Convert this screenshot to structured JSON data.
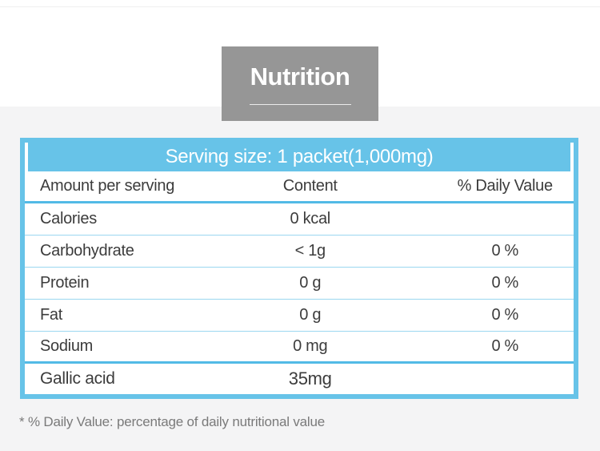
{
  "page": {
    "section_title": "Nutrition",
    "footnote": "* % Daily Value: percentage of daily nutritional value"
  },
  "colors": {
    "accent_blue": "#67C3E8",
    "divider_strong": "#52BAE6",
    "divider_light": "#9BD7F0",
    "title_box_gray": "#969696",
    "section_background": "#F4F4F5",
    "text_dark": "#3C3C3C",
    "text_muted": "#7A7A7A",
    "header_text": "#FFFFFF"
  },
  "table": {
    "serving_header": "Serving size: 1 packet(1,000mg)",
    "columns": [
      "Amount per serving",
      "Content",
      "% Daily Value"
    ],
    "rows": [
      {
        "name": "Calories",
        "content": "0 kcal",
        "daily_value": ""
      },
      {
        "name": "Carbohydrate",
        "content": "< 1g",
        "daily_value": "0 %"
      },
      {
        "name": "Protein",
        "content": "0 g",
        "daily_value": "0 %"
      },
      {
        "name": "Fat",
        "content": "0 g",
        "daily_value": "0 %"
      },
      {
        "name": "Sodium",
        "content": "0 mg",
        "daily_value": "0 %"
      },
      {
        "name": "Gallic acid",
        "content": "35mg",
        "daily_value": ""
      }
    ]
  }
}
